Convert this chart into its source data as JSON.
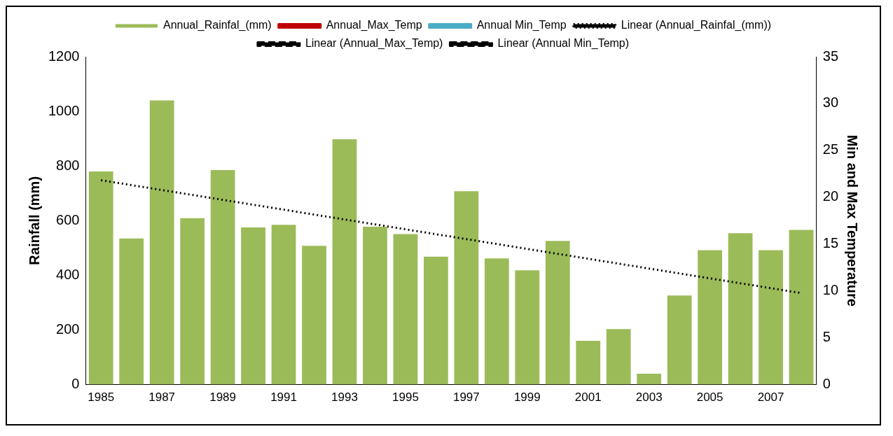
{
  "chart_data": {
    "type": "bar",
    "categories": [
      "1985",
      null,
      "1987",
      null,
      "1989",
      null,
      "1991",
      null,
      "1993",
      null,
      "1995",
      null,
      "1997",
      null,
      "1999",
      null,
      "2001",
      null,
      "2003",
      null,
      "2005",
      null,
      "2007",
      null
    ],
    "ylabel": "Rainfall (mm)",
    "y2label": "Min and Max Temperature",
    "ylim": [
      0,
      1200
    ],
    "yticks": [
      0,
      200,
      400,
      600,
      800,
      1000,
      1200
    ],
    "y2lim": [
      0,
      35
    ],
    "y2ticks": [
      0,
      5,
      10,
      15,
      20,
      25,
      30,
      35
    ],
    "grid": false,
    "legend": "top",
    "series": [
      {
        "name": "Annual_Rainfal_(mm)",
        "color": "#9bbb59",
        "values": [
          780,
          535,
          1040,
          609,
          785,
          575,
          585,
          508,
          898,
          578,
          551,
          468,
          708,
          462,
          418,
          526,
          160,
          203,
          40,
          326,
          492,
          554,
          492,
          566
        ]
      },
      {
        "name": "Annual_Max_Temp",
        "type": "line",
        "color": "#c00000",
        "values": [
          null,
          null,
          null,
          null,
          null,
          null,
          null,
          null,
          null,
          null,
          null,
          null,
          null,
          null,
          null,
          null,
          null,
          null,
          null,
          null,
          null,
          null,
          null,
          null
        ]
      },
      {
        "name": "Annual Min_Temp",
        "type": "line",
        "color": "#4bacc6",
        "values": [
          null,
          null,
          null,
          null,
          null,
          null,
          null,
          null,
          null,
          null,
          null,
          null,
          null,
          null,
          null,
          null,
          null,
          null,
          null,
          null,
          null,
          null,
          null,
          null
        ]
      },
      {
        "name": "Linear (Annual_Rainfal_(mm))",
        "type": "line",
        "color": "#000000",
        "line_style": "dotted",
        "values": [
          748,
          null,
          null,
          null,
          null,
          null,
          null,
          null,
          null,
          null,
          null,
          null,
          null,
          null,
          null,
          null,
          null,
          null,
          null,
          null,
          null,
          null,
          null,
          335
        ]
      },
      {
        "name": "Linear (Annual_Max_Temp)",
        "type": "line",
        "color": "#000000",
        "line_style": "dashed",
        "values": [
          null,
          null,
          null,
          null,
          null,
          null,
          null,
          null,
          null,
          null,
          null,
          null,
          null,
          null,
          null,
          null,
          null,
          null,
          null,
          null,
          null,
          null,
          null,
          null
        ]
      },
      {
        "name": "Linear (Annual Min_Temp)",
        "type": "line",
        "color": "#000000",
        "line_style": "dashed",
        "values": [
          null,
          null,
          null,
          null,
          null,
          null,
          null,
          null,
          null,
          null,
          null,
          null,
          null,
          null,
          null,
          null,
          null,
          null,
          null,
          null,
          null,
          null,
          null,
          null
        ]
      }
    ]
  }
}
